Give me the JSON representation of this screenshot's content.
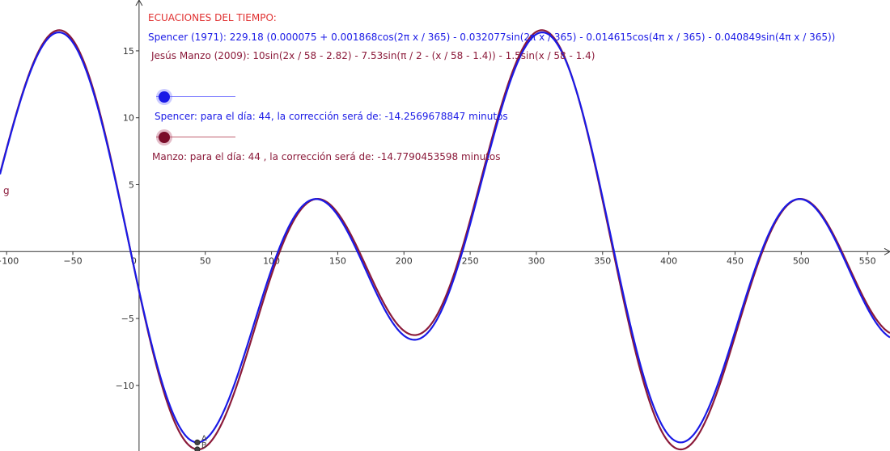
{
  "texts": {
    "title": "ECUACIONES DEL TIEMPO:",
    "spencer_eq": "Spencer (1971): 229.18 (0.000075 + 0.001868cos(2π x / 365) - 0.032077sin(2π x / 365) - 0.014615cos(4π x / 365) - 0.040849sin(4π x / 365))",
    "manzo_eq": "Jesús Manzo (2009):  10sin(2x / 58 - 2.82) - 7.53sin(π / 2 - (x / 58 - 1.4)) - 1.5sin(x / 58 - 1.4)",
    "spencer_result": "Spencer: para el día: 44, la corrección será de: -14.2569678847 minutos",
    "manzo_result": "Manzo: para el día: 44 , la corrección será de:  -14.7790453598 minutos",
    "function_label": "g"
  },
  "colors": {
    "spencer": "#1a1ae6",
    "manzo": "#8b1a3a",
    "title": "#e03030",
    "axis": "#333333"
  },
  "sliders": [
    {
      "name": "spencer-day-slider",
      "value": 44,
      "color": "#1a1ae6"
    },
    {
      "name": "manzo-day-slider",
      "value": 44,
      "color": "#7a0d2a"
    }
  ],
  "chart_data": {
    "type": "line",
    "xlim": [
      -105,
      567
    ],
    "ylim": [
      -14.9,
      18.8
    ],
    "x_ticks": [
      -100,
      -50,
      0,
      50,
      100,
      150,
      200,
      250,
      300,
      350,
      400,
      450,
      500,
      550
    ],
    "y_ticks": [
      -10,
      -5,
      5,
      10,
      15
    ],
    "x_tick_labels": [
      "−100",
      "−50",
      "0",
      "50",
      "100",
      "150",
      "200",
      "250",
      "300",
      "350",
      "400",
      "450",
      "500",
      "550"
    ],
    "y_tick_labels": [
      "−10",
      "−5",
      "5",
      "10",
      "15"
    ],
    "grid": false,
    "series": [
      {
        "name": "Spencer (1971)",
        "formula": "spencer",
        "color": "#1a1ae6"
      },
      {
        "name": "Jesús Manzo (2009)",
        "formula": "manzo",
        "color": "#8b1a3a"
      }
    ],
    "points": [
      {
        "label": "A",
        "x": 44,
        "y": -14.26
      },
      {
        "label": "B",
        "x": 44,
        "y": -14.78
      }
    ]
  }
}
